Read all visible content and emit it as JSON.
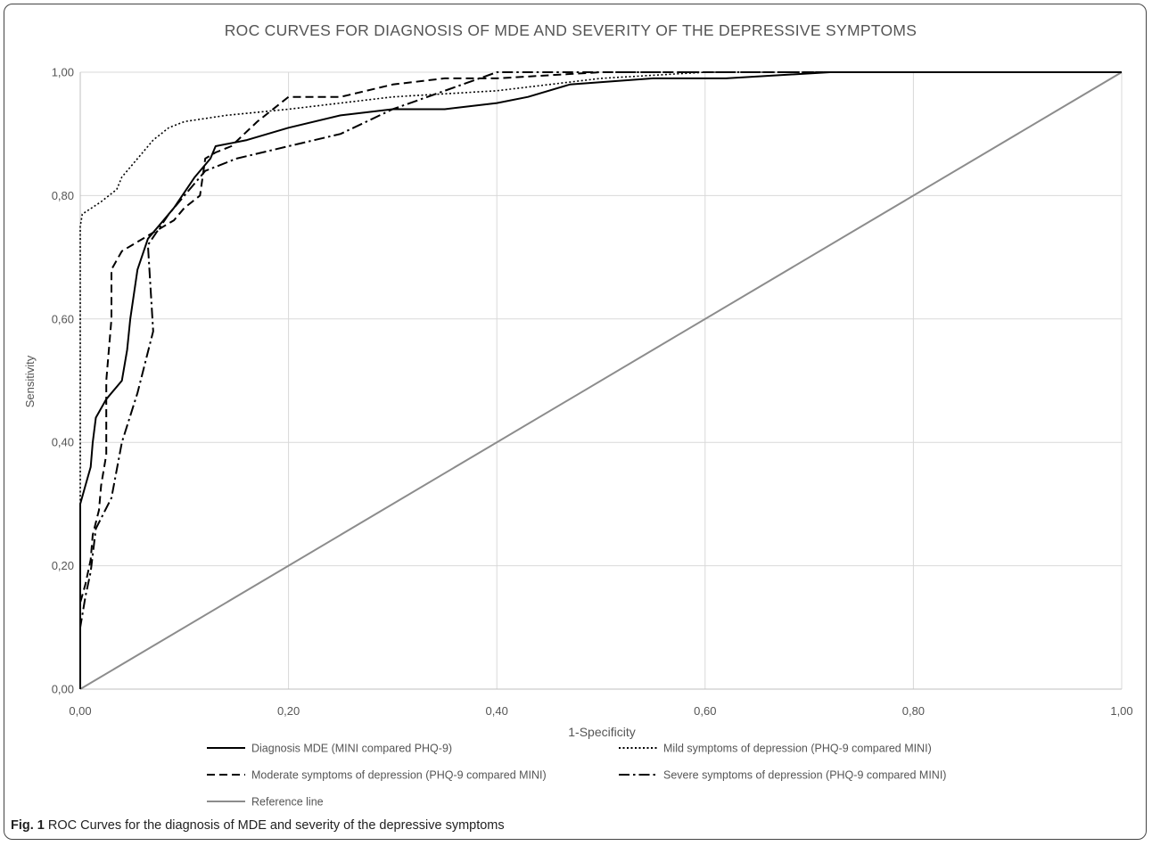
{
  "figure_caption": {
    "label": "Fig. 1",
    "text": " ROC Curves for the diagnosis of MDE and severity of the depressive symptoms"
  },
  "chart_data": {
    "type": "line",
    "title": "ROC CURVES FOR DIAGNOSIS  OF MDE AND SEVERITY OF THE DEPRESSIVE SYMPTOMS",
    "xlabel": "1-Specificity",
    "ylabel": "Sensitivity",
    "xlim": [
      0,
      1
    ],
    "ylim": [
      0,
      1
    ],
    "x_ticks": [
      "0,00",
      "0,20",
      "0,40",
      "0,60",
      "0,80",
      "1,00"
    ],
    "y_ticks": [
      "0,00",
      "0,20",
      "0,40",
      "0,60",
      "0,80",
      "1,00"
    ],
    "grid": true,
    "legend_position": "bottom",
    "series": [
      {
        "name": "Diagnosis MDE (MINI compared PHQ-9)",
        "style": "solid",
        "color": "#000000",
        "points": [
          [
            0,
            0
          ],
          [
            0,
            0.3
          ],
          [
            0.005,
            0.33
          ],
          [
            0.01,
            0.36
          ],
          [
            0.012,
            0.4
          ],
          [
            0.015,
            0.44
          ],
          [
            0.025,
            0.47
          ],
          [
            0.04,
            0.5
          ],
          [
            0.045,
            0.55
          ],
          [
            0.048,
            0.6
          ],
          [
            0.055,
            0.68
          ],
          [
            0.065,
            0.73
          ],
          [
            0.08,
            0.76
          ],
          [
            0.09,
            0.78
          ],
          [
            0.11,
            0.83
          ],
          [
            0.125,
            0.86
          ],
          [
            0.13,
            0.88
          ],
          [
            0.16,
            0.89
          ],
          [
            0.2,
            0.91
          ],
          [
            0.25,
            0.93
          ],
          [
            0.3,
            0.94
          ],
          [
            0.35,
            0.94
          ],
          [
            0.4,
            0.95
          ],
          [
            0.43,
            0.96
          ],
          [
            0.47,
            0.98
          ],
          [
            0.55,
            0.99
          ],
          [
            0.62,
            0.99
          ],
          [
            0.72,
            1.0
          ],
          [
            1,
            1
          ]
        ]
      },
      {
        "name": "Mild symptoms of depression (PHQ-9 compared MINI)",
        "style": "dotted",
        "color": "#000000",
        "points": [
          [
            0,
            0
          ],
          [
            0,
            0.75
          ],
          [
            0.002,
            0.77
          ],
          [
            0.02,
            0.79
          ],
          [
            0.035,
            0.81
          ],
          [
            0.04,
            0.83
          ],
          [
            0.05,
            0.85
          ],
          [
            0.06,
            0.87
          ],
          [
            0.07,
            0.89
          ],
          [
            0.085,
            0.91
          ],
          [
            0.1,
            0.92
          ],
          [
            0.14,
            0.93
          ],
          [
            0.2,
            0.94
          ],
          [
            0.3,
            0.96
          ],
          [
            0.4,
            0.97
          ],
          [
            0.5,
            0.99
          ],
          [
            0.6,
            1.0
          ],
          [
            1,
            1
          ]
        ]
      },
      {
        "name": "Moderate symptoms of depression (PHQ-9 compared MINI)",
        "style": "dashed",
        "color": "#000000",
        "points": [
          [
            0,
            0
          ],
          [
            0,
            0.14
          ],
          [
            0.005,
            0.17
          ],
          [
            0.01,
            0.21
          ],
          [
            0.012,
            0.25
          ],
          [
            0.018,
            0.29
          ],
          [
            0.02,
            0.33
          ],
          [
            0.025,
            0.38
          ],
          [
            0.025,
            0.5
          ],
          [
            0.03,
            0.6
          ],
          [
            0.03,
            0.68
          ],
          [
            0.04,
            0.71
          ],
          [
            0.07,
            0.74
          ],
          [
            0.09,
            0.76
          ],
          [
            0.1,
            0.78
          ],
          [
            0.115,
            0.8
          ],
          [
            0.12,
            0.86
          ],
          [
            0.13,
            0.87
          ],
          [
            0.145,
            0.88
          ],
          [
            0.17,
            0.92
          ],
          [
            0.2,
            0.96
          ],
          [
            0.25,
            0.96
          ],
          [
            0.3,
            0.98
          ],
          [
            0.35,
            0.99
          ],
          [
            0.4,
            0.99
          ],
          [
            0.5,
            1.0
          ],
          [
            1,
            1
          ]
        ]
      },
      {
        "name": "Severe symptoms of depression (PHQ-9 compared MINI)",
        "style": "dash-dot",
        "color": "#000000",
        "points": [
          [
            0,
            0
          ],
          [
            0,
            0.1
          ],
          [
            0.005,
            0.15
          ],
          [
            0.01,
            0.19
          ],
          [
            0.015,
            0.26
          ],
          [
            0.03,
            0.31
          ],
          [
            0.04,
            0.4
          ],
          [
            0.055,
            0.48
          ],
          [
            0.07,
            0.58
          ],
          [
            0.065,
            0.72
          ],
          [
            0.085,
            0.77
          ],
          [
            0.1,
            0.8
          ],
          [
            0.12,
            0.84
          ],
          [
            0.15,
            0.86
          ],
          [
            0.2,
            0.88
          ],
          [
            0.25,
            0.9
          ],
          [
            0.3,
            0.94
          ],
          [
            0.35,
            0.97
          ],
          [
            0.4,
            1.0
          ],
          [
            1,
            1
          ]
        ]
      },
      {
        "name": "Reference line",
        "style": "solid",
        "color": "#8c8c8c",
        "points": [
          [
            0,
            0
          ],
          [
            1,
            1
          ]
        ]
      }
    ]
  }
}
